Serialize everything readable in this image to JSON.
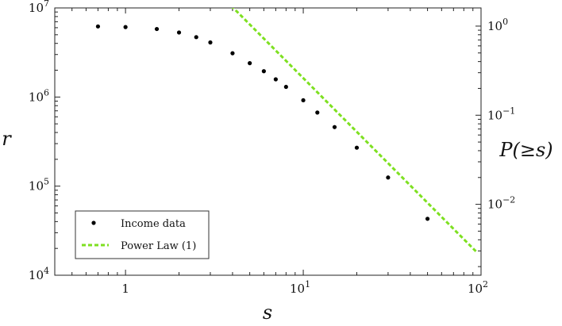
{
  "chart_data": {
    "type": "scatter",
    "title": "",
    "xlabel": "s",
    "ylabel_left": "r",
    "ylabel_right": "P(≥s)",
    "x_scale": "log",
    "y_scale": "log",
    "xlim": [
      0.4,
      100
    ],
    "ylim_left": [
      10000,
      10000000
    ],
    "ylim_right": [
      0.0016,
      1.6
    ],
    "x_ticks": [
      {
        "value": 1,
        "label": "1"
      },
      {
        "value": 10,
        "label": "10",
        "exp": "1"
      },
      {
        "value": 100,
        "label": "10",
        "exp": "2"
      }
    ],
    "y_left_ticks": [
      {
        "value": 10000,
        "label": "10",
        "exp": "4"
      },
      {
        "value": 100000,
        "label": "10",
        "exp": "5"
      },
      {
        "value": 1000000,
        "label": "10",
        "exp": "6"
      },
      {
        "value": 10000000,
        "label": "10",
        "exp": "7"
      }
    ],
    "y_right_ticks": [
      {
        "value": 1,
        "label": "10",
        "exp": "0"
      },
      {
        "value": 0.1,
        "label": "10",
        "exp": "−1"
      },
      {
        "value": 0.01,
        "label": "10",
        "exp": "−2"
      }
    ],
    "grid": false,
    "legend_position": "bottom-left",
    "legend": [
      {
        "name": "Income data",
        "marker": "dot",
        "color": "#000000"
      },
      {
        "name": "Power Law (1)",
        "marker": "dashed-line",
        "color": "#7ee021"
      }
    ],
    "series": [
      {
        "name": "Income data",
        "kind": "scatter",
        "color": "#000000",
        "points": [
          {
            "x": 0.7,
            "y": 6200000
          },
          {
            "x": 1.0,
            "y": 6100000
          },
          {
            "x": 1.5,
            "y": 5800000
          },
          {
            "x": 2.0,
            "y": 5300000
          },
          {
            "x": 2.5,
            "y": 4700000
          },
          {
            "x": 3.0,
            "y": 4100000
          },
          {
            "x": 4.0,
            "y": 3100000
          },
          {
            "x": 5.0,
            "y": 2400000
          },
          {
            "x": 6.0,
            "y": 1950000
          },
          {
            "x": 7.0,
            "y": 1580000
          },
          {
            "x": 8.0,
            "y": 1300000
          },
          {
            "x": 10.0,
            "y": 920000
          },
          {
            "x": 12.0,
            "y": 670000
          },
          {
            "x": 15.0,
            "y": 460000
          },
          {
            "x": 20.0,
            "y": 270000
          },
          {
            "x": 30.0,
            "y": 125000
          },
          {
            "x": 50.0,
            "y": 43000
          }
        ]
      },
      {
        "name": "Power Law (1)",
        "kind": "line",
        "style": "dashed",
        "color": "#7ee021",
        "points": [
          {
            "x": 3.3,
            "y": 15000000
          },
          {
            "x": 95,
            "y": 18000
          }
        ]
      }
    ]
  }
}
